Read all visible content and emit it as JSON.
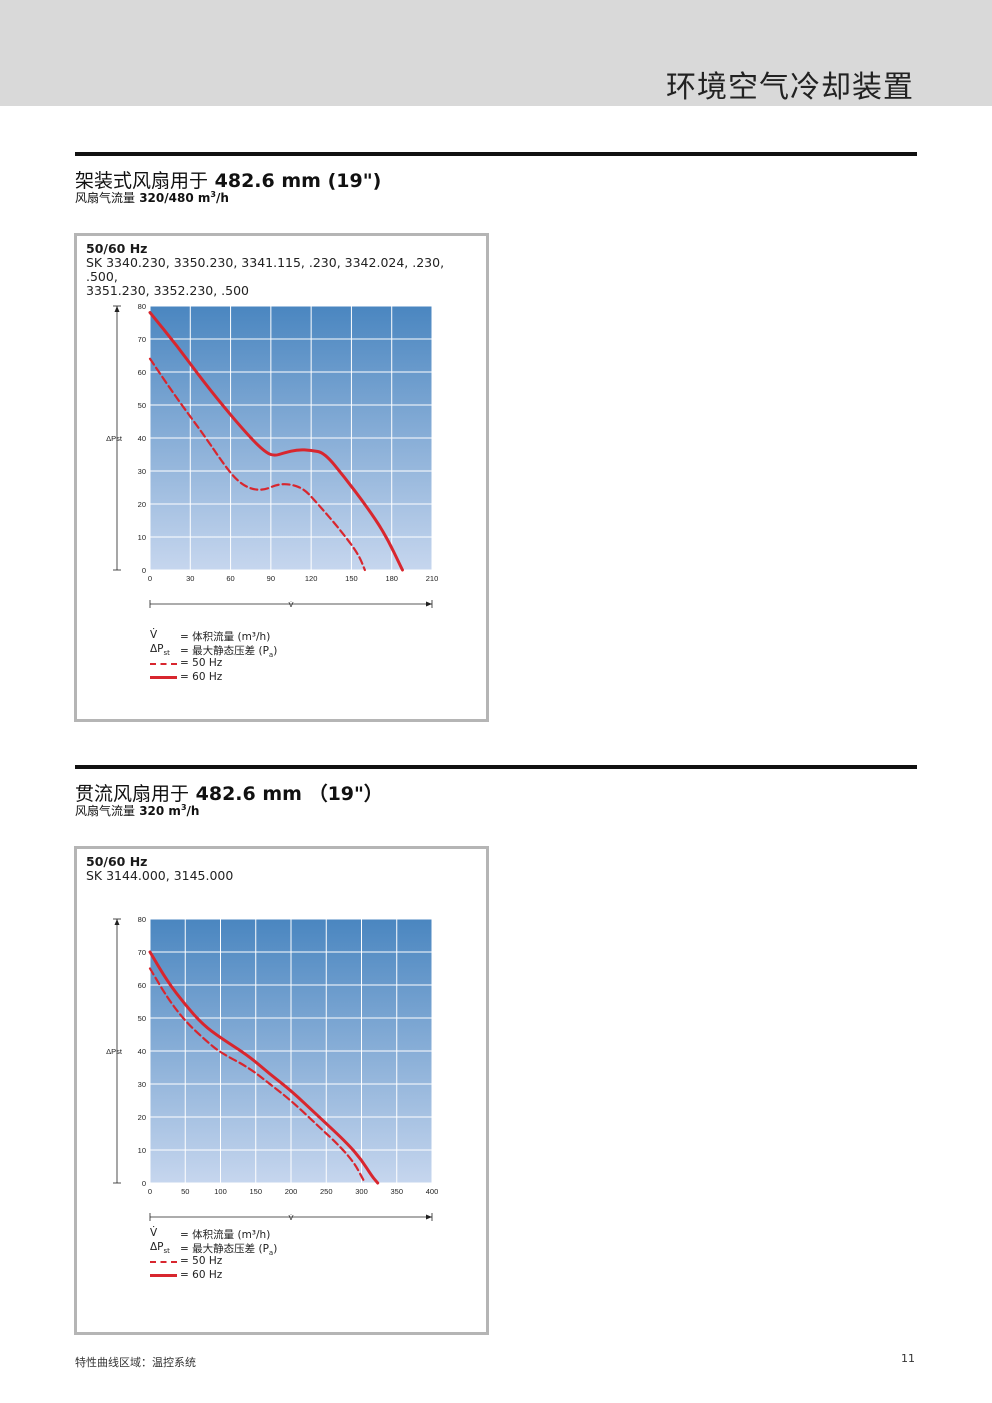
{
  "header": {
    "title": "环境空气冷却装置"
  },
  "sections": [
    {
      "title_cjk": "架装式风扇用于",
      "title_bold": "482.6 mm (19\")",
      "sub_cjk": "风扇气流量",
      "sub_bold": "320/480 m",
      "sub_sup": "3",
      "sub_tail": "/h",
      "hz": "50/60 Hz",
      "models_line1": "SK 3340.230, 3350.230, 3341.115, .230, 3342.024, .230, .500,",
      "models_line2": "3351.230, 3352.230, .500"
    },
    {
      "title_cjk": "贯流风扇用于",
      "title_bold": "482.6 mm （19\"）",
      "sub_cjk": "风扇气流量",
      "sub_bold": "320 m",
      "sub_sup": "3",
      "sub_tail": "/h",
      "hz": "50/60 Hz",
      "models_line1": "SK 3144.000, 3145.000",
      "models_line2": ""
    }
  ],
  "legend": {
    "v_sym": "V̇",
    "v_txt": "= 体积流量 (m³/h)",
    "p_sym": "ΔP",
    "p_sub": "st",
    "p_txt": "= 最大静态压差 (P",
    "p_unit_sub": "a",
    "p_close": ")",
    "hz50": "= 50 Hz",
    "hz60": "= 60 Hz"
  },
  "footer": {
    "left": "特性曲线区域：温控系统",
    "page": "11"
  },
  "colors": {
    "curve": "#d8262e",
    "grad_top": "#4a86c0",
    "grad_bottom": "#c6d6ee"
  },
  "chart_data": [
    {
      "type": "line",
      "x_ticks": [
        0,
        30,
        60,
        90,
        120,
        150,
        180,
        210
      ],
      "y_ticks": [
        0,
        10,
        20,
        30,
        40,
        50,
        60,
        70,
        80
      ],
      "xlim": [
        0,
        210
      ],
      "ylim": [
        0,
        80
      ],
      "xlabel": "V̇",
      "ylabel": "ΔPst",
      "grid": true,
      "series": [
        {
          "name": "60 Hz",
          "dash": false,
          "points": [
            [
              0,
              78
            ],
            [
              20,
              68
            ],
            [
              40,
              57
            ],
            [
              60,
              47
            ],
            [
              75,
              40
            ],
            [
              85,
              36
            ],
            [
              92,
              34.5
            ],
            [
              100,
              35.5
            ],
            [
              110,
              36.5
            ],
            [
              120,
              36.3
            ],
            [
              130,
              35.5
            ],
            [
              145,
              28
            ],
            [
              160,
              20
            ],
            [
              175,
              11
            ],
            [
              188,
              0
            ]
          ]
        },
        {
          "name": "50 Hz",
          "dash": true,
          "points": [
            [
              0,
              64
            ],
            [
              20,
              52
            ],
            [
              40,
              41
            ],
            [
              55,
              32
            ],
            [
              65,
              27
            ],
            [
              75,
              24.5
            ],
            [
              85,
              24.2
            ],
            [
              95,
              26
            ],
            [
              105,
              26
            ],
            [
              115,
              24.5
            ],
            [
              125,
              20
            ],
            [
              140,
              13
            ],
            [
              155,
              5
            ],
            [
              160,
              0
            ]
          ]
        }
      ]
    },
    {
      "type": "line",
      "x_ticks": [
        0,
        50,
        100,
        150,
        200,
        250,
        300,
        350,
        400
      ],
      "y_ticks": [
        0,
        10,
        20,
        30,
        40,
        50,
        60,
        70,
        80
      ],
      "xlim": [
        0,
        400
      ],
      "ylim": [
        0,
        80
      ],
      "xlabel": "V̇",
      "ylabel": "ΔPst",
      "grid": true,
      "series": [
        {
          "name": "60 Hz",
          "dash": false,
          "points": [
            [
              0,
              70
            ],
            [
              25,
              61
            ],
            [
              50,
              54
            ],
            [
              75,
              48
            ],
            [
              100,
              44
            ],
            [
              140,
              38.5
            ],
            [
              170,
              33
            ],
            [
              200,
              28
            ],
            [
              240,
              20
            ],
            [
              280,
              12
            ],
            [
              300,
              7
            ],
            [
              315,
              2
            ],
            [
              323,
              0
            ]
          ]
        },
        {
          "name": "50 Hz",
          "dash": true,
          "points": [
            [
              0,
              65
            ],
            [
              25,
              56
            ],
            [
              50,
              49
            ],
            [
              80,
              43
            ],
            [
              100,
              39.5
            ],
            [
              140,
              35
            ],
            [
              170,
              30
            ],
            [
              200,
              25
            ],
            [
              240,
              17
            ],
            [
              270,
              11
            ],
            [
              290,
              6
            ],
            [
              300,
              2
            ],
            [
              305,
              0
            ]
          ]
        }
      ]
    }
  ]
}
